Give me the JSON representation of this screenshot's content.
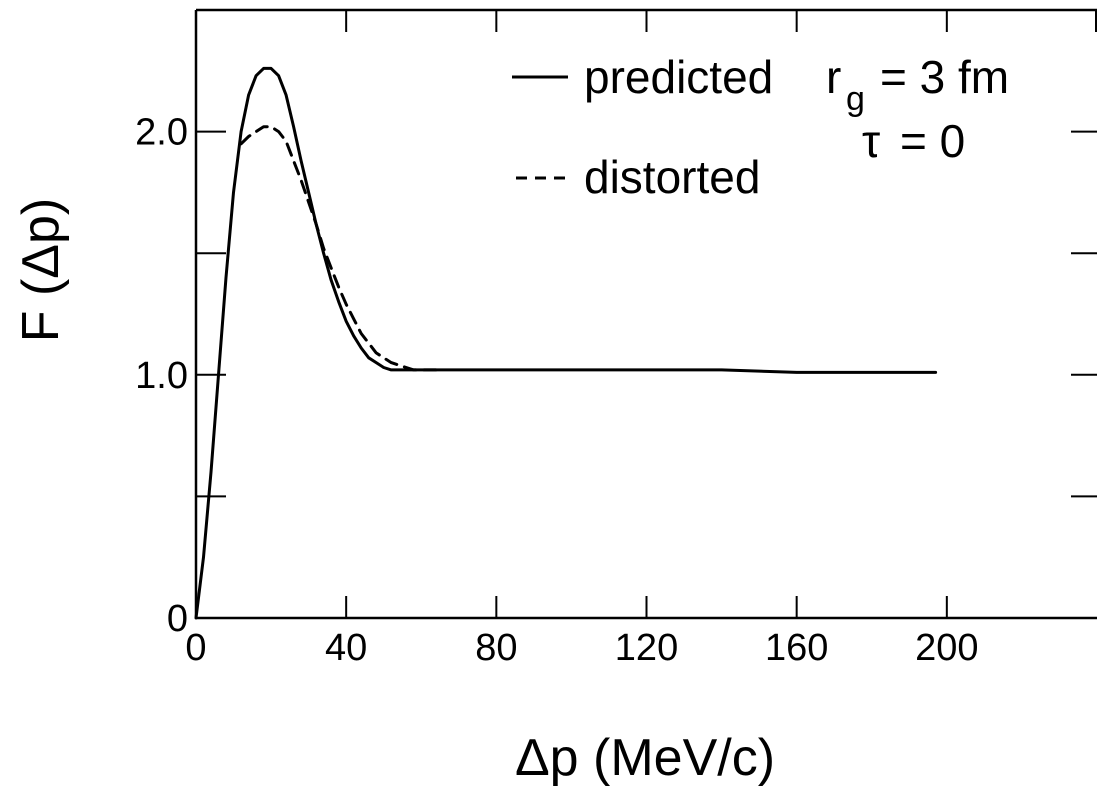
{
  "chart_data": {
    "type": "line",
    "xlabel": "Δp (MeV/c)",
    "ylabel": "F (Δp)",
    "xlim": [
      0,
      240
    ],
    "ylim": [
      0,
      2.5
    ],
    "x_ticks": [
      0,
      40,
      80,
      120,
      160,
      200
    ],
    "x_tick_labels": [
      "0",
      "40",
      "80",
      "120",
      "160",
      "200"
    ],
    "y_ticks": [
      0,
      1.0,
      2.0
    ],
    "y_tick_labels": [
      "0",
      "1.0",
      "2.0"
    ],
    "y_minor_ticks": [
      0.5,
      1.5
    ],
    "grid": false,
    "legend_position": "top-right",
    "series": [
      {
        "name": "predicted",
        "style": "solid",
        "x": [
          0,
          2,
          4,
          6,
          8,
          10,
          12,
          14,
          16,
          18,
          20,
          22,
          24,
          26,
          28,
          30,
          32,
          34,
          36,
          38,
          40,
          42,
          44,
          46,
          48,
          50,
          52,
          54,
          56,
          58,
          60,
          65,
          70,
          80,
          100,
          120,
          140,
          160,
          180,
          197
        ],
        "y": [
          0,
          0.25,
          0.6,
          1.0,
          1.4,
          1.75,
          2.0,
          2.15,
          2.23,
          2.26,
          2.26,
          2.23,
          2.15,
          2.02,
          1.88,
          1.75,
          1.62,
          1.5,
          1.39,
          1.3,
          1.22,
          1.16,
          1.11,
          1.07,
          1.05,
          1.03,
          1.02,
          1.02,
          1.02,
          1.02,
          1.02,
          1.02,
          1.02,
          1.02,
          1.02,
          1.02,
          1.02,
          1.01,
          1.01,
          1.01
        ]
      },
      {
        "name": "distorted",
        "style": "dashed",
        "x": [
          12,
          14,
          16,
          18,
          20,
          22,
          24,
          26,
          28,
          30,
          32,
          34,
          36,
          38,
          40,
          42,
          44,
          46,
          48,
          50,
          52,
          54,
          56,
          58,
          60,
          62,
          64,
          66
        ],
        "y": [
          1.95,
          1.98,
          2.0,
          2.02,
          2.02,
          2.0,
          1.96,
          1.88,
          1.8,
          1.71,
          1.62,
          1.52,
          1.44,
          1.36,
          1.29,
          1.23,
          1.17,
          1.13,
          1.09,
          1.07,
          1.05,
          1.04,
          1.03,
          1.02,
          1.02,
          1.02,
          1.02,
          1.02
        ]
      }
    ],
    "legend": [
      {
        "style": "solid",
        "label": "predicted"
      },
      {
        "style": "dashed",
        "label": "distorted"
      }
    ],
    "annotations": {
      "rg_symbol": "r",
      "rg_subscript": "g",
      "rg_value": "= 3 fm",
      "tau_symbol": "τ",
      "tau_value": "= 0"
    }
  }
}
